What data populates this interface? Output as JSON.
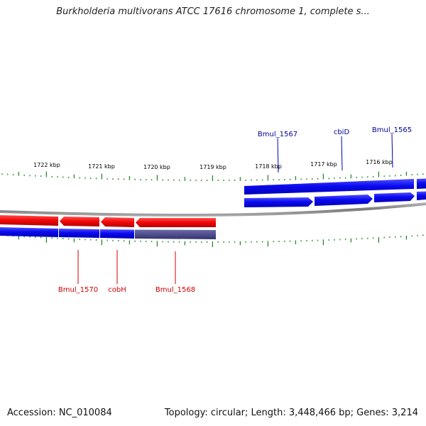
{
  "title": "Burkholderia multivorans ATCC 17616 chromosome 1, complete s...",
  "footer": {
    "accession": "Accession: NC_010084",
    "summary": "Topology: circular; Length: 3,448,466 bp; Genes: 3,214"
  },
  "colors": {
    "forward_gene": "#0000ee",
    "reverse_gene": "#ee0000",
    "selected_region": "#4a4a8a",
    "tick": "#2a8a2a",
    "backbone": "#888888",
    "forward_label": "#000099",
    "reverse_label": "#cc0000"
  },
  "scale_labels": [
    "1722 kbp",
    "1721 kbp",
    "1720 kbp",
    "1719 kbp",
    "1718 kbp",
    "1717 kbp",
    "1716 kbp"
  ],
  "forward_labels": [
    "Bmul_1567",
    "cbiD",
    "Bmul_1565"
  ],
  "reverse_labels": [
    "Bmul_1570",
    "cobH",
    "Bmul_1568"
  ]
}
